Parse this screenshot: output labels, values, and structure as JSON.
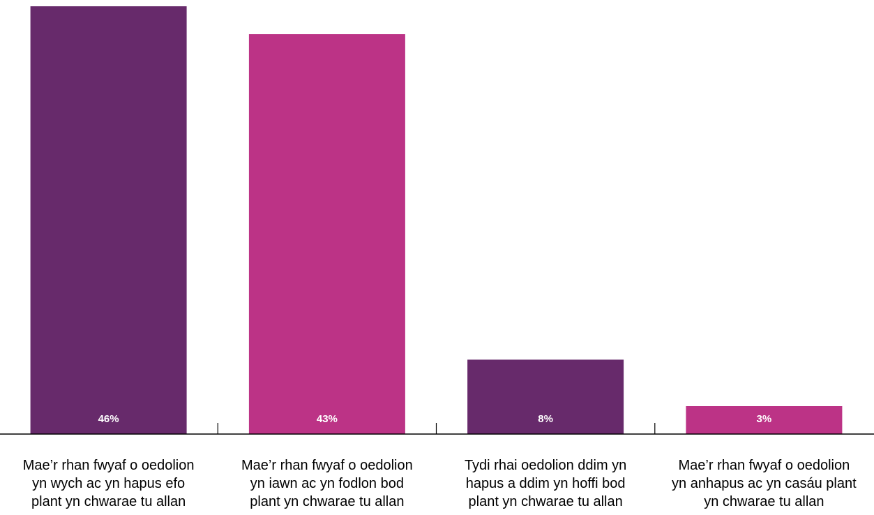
{
  "chart_data": {
    "type": "bar",
    "categories": [
      "Mae’r rhan fwyaf o oedolion\nyn wych ac yn hapus efo\nplant yn chwarae tu allan",
      "Mae’r rhan fwyaf o oedolion\nyn iawn ac yn fodlon bod\nplant yn chwarae tu allan",
      "Tydi rhai oedolion ddim yn\nhapus a ddim yn hoffi bod\nplant yn chwarae tu allan",
      "Mae’r rhan fwyaf o oedolion\nyn anhapus ac yn casáu plant\nyn chwarae tu allan"
    ],
    "values": [
      46,
      43,
      8,
      3
    ],
    "value_labels": [
      "46%",
      "43%",
      "8%",
      "3%"
    ],
    "colors": [
      "#672a6b",
      "#bc3386",
      "#672a6b",
      "#bc3386"
    ],
    "ylim": [
      0,
      46
    ],
    "grid": false,
    "legend": "none"
  }
}
